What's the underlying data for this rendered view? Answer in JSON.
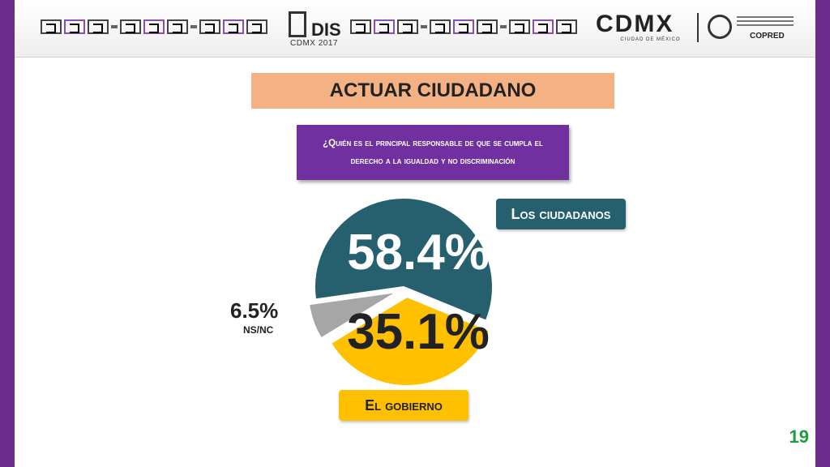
{
  "header": {
    "edis_logo_text": "DIS",
    "edis_logo_sub": "CDMX 2017",
    "cdmx_logo_text": "CDMX",
    "cdmx_logo_sub": "CIUDAD DE MÉXICO",
    "copred_logo_text": "COPRED"
  },
  "slide": {
    "title": "ACTUAR CIUDADANO",
    "question": "¿Quién es el principal responsable de que se cumpla el derecho a la igualdad y no discriminación",
    "page_number": "19"
  },
  "chart_data": {
    "type": "pie",
    "slices": [
      {
        "label": "Los ciudadanos",
        "value": 58.4,
        "value_label": "58.4%",
        "color": "#26606e"
      },
      {
        "label": "El gobierno",
        "value": 35.1,
        "value_label": "35.1%",
        "color": "#ffc000"
      },
      {
        "label": "NS/NC",
        "value": 6.5,
        "value_label": "6.5%",
        "color": "#a6a6a6"
      }
    ]
  }
}
